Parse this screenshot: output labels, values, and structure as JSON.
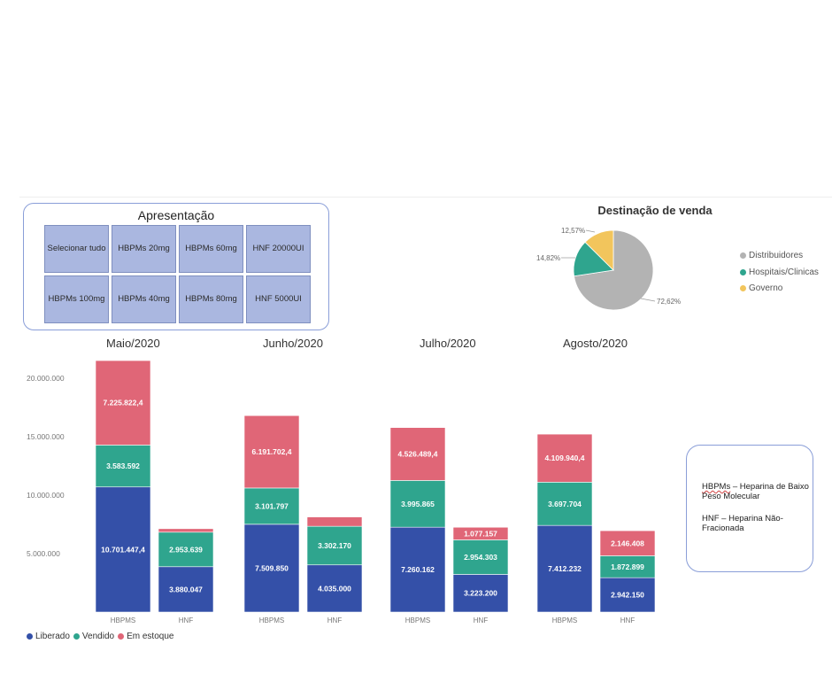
{
  "slicer": {
    "title": "Apresentação",
    "options": [
      "Selecionar tudo",
      "HBPMs 20mg",
      "HBPMs 60mg",
      "HNF 20000UI",
      "HBPMs 100mg",
      "HBPMs 40mg",
      "HBPMs 80mg",
      "HNF 5000UI"
    ]
  },
  "pie": {
    "title": "Destinação de venda",
    "slices": [
      {
        "label": "Distribuidores",
        "value": 72.62,
        "value_label": "72,62%",
        "color": "#b3b3b3"
      },
      {
        "label": "Hospitais/Clinicas",
        "value": 14.82,
        "value_label": "14,82%",
        "color": "#2fa58e"
      },
      {
        "label": "Governo",
        "value": 12.57,
        "value_label": "12,57%",
        "color": "#f2c55c"
      }
    ]
  },
  "chart_data": {
    "type": "bar",
    "stacked": true,
    "groups": [
      "Maio/2020",
      "Junho/2020",
      "Julho/2020",
      "Agosto/2020"
    ],
    "categories": [
      "HBPMS",
      "HNF"
    ],
    "y_ticks": [
      "5.000.000",
      "10.000.000",
      "15.000.000",
      "20.000.000"
    ],
    "ylim": [
      0,
      22000000
    ],
    "series": [
      {
        "name": "Liberado",
        "color": "#3450a8",
        "values": [
          [
            10701447.4,
            3880047
          ],
          [
            7509850,
            4035000
          ],
          [
            7260162,
            3223200
          ],
          [
            7412232,
            2942150
          ]
        ],
        "labels": [
          [
            "10.701.447,4",
            "3.880.047"
          ],
          [
            "7.509.850",
            "4.035.000"
          ],
          [
            "7.260.162",
            "3.223.200"
          ],
          [
            "7.412.232",
            "2.942.150"
          ]
        ]
      },
      {
        "name": "Vendido",
        "color": "#2fa58e",
        "values": [
          [
            3583592,
            2953639
          ],
          [
            3101797,
            3302170
          ],
          [
            3995865,
            2954303
          ],
          [
            3697704,
            1872899
          ]
        ],
        "labels": [
          [
            "3.583.592",
            "2.953.639"
          ],
          [
            "3.101.797",
            "3.302.170"
          ],
          [
            "3.995.865",
            "2.954.303"
          ],
          [
            "3.697.704",
            "1.872.899"
          ]
        ]
      },
      {
        "name": "Em estoque",
        "color": "#e06677",
        "values": [
          [
            7225822.4,
            300000
          ],
          [
            6191702.4,
            800000
          ],
          [
            4526489.4,
            1077157
          ],
          [
            4109940.4,
            2146408
          ]
        ],
        "labels": [
          [
            "7.225.822,4",
            ""
          ],
          [
            "6.191.702,4",
            ""
          ],
          [
            "4.526.489,4",
            "1.077.157"
          ],
          [
            "4.109.940,4",
            "2.146.408"
          ]
        ]
      }
    ],
    "legend": "bottom-left"
  },
  "note": {
    "line1_a": "HBPMs",
    "line1_b": " – Heparina de Baixo Peso Molecular",
    "line2": "HNF – Heparina Não-Fracionada"
  }
}
